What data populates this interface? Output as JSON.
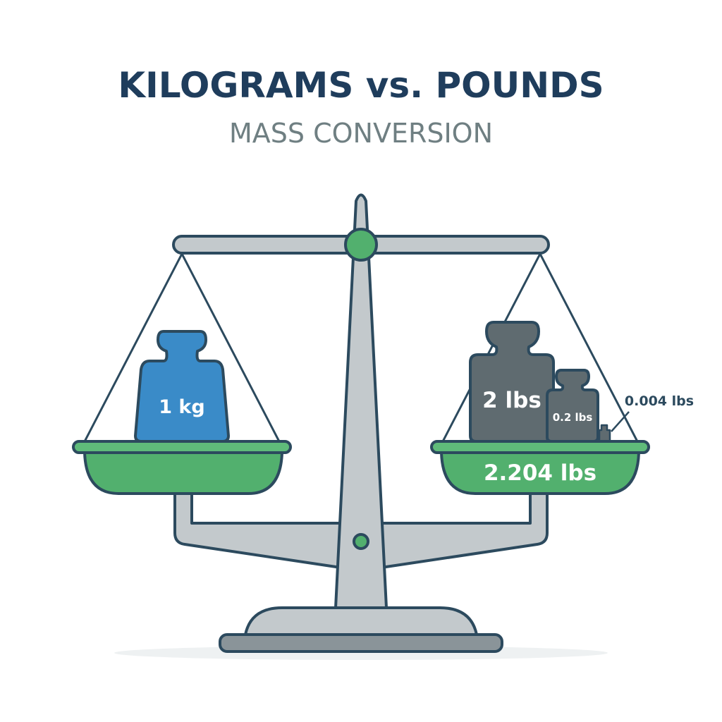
{
  "title": "KILOGRAMS vs. POUNDS",
  "subtitle": "MASS CONVERSION",
  "left_pan": {
    "weights": [
      {
        "label": "1 kg",
        "color": "#3a8bc8"
      }
    ]
  },
  "right_pan": {
    "total_label": "2.204 lbs",
    "weights": [
      {
        "label": "2 lbs",
        "color": "#5f6b70"
      },
      {
        "label": "0.2 lbs",
        "color": "#5f6b70"
      },
      {
        "label": "0.004 lbs",
        "color": "#5f6b70"
      }
    ]
  },
  "colors": {
    "title": "#1f3d5c",
    "subtitle": "#6f7f82",
    "outline": "#2c4a5e",
    "scale_gray": "#c3c9cc",
    "pan_green": "#52b06e",
    "kg_blue": "#3a8bc8",
    "lb_gray": "#5f6b70"
  }
}
